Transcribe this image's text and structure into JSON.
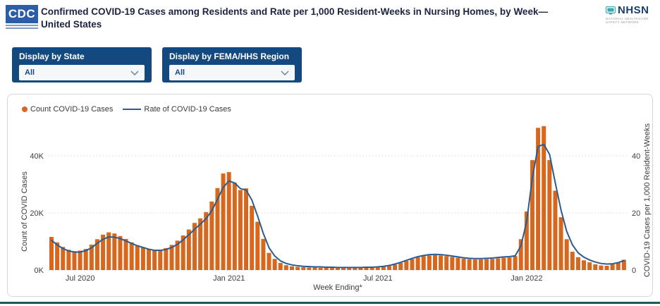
{
  "header": {
    "cdc_logo_text": "CDC",
    "title": "Confirmed COVID-19 Cases among Residents and Rate per 1,000 Resident-Weeks in Nursing Homes, by Week— United States",
    "nhsn_name": "NHSN",
    "nhsn_subtitle": "NATIONAL HEALTHCARE SAFETY NETWORK"
  },
  "filters": [
    {
      "label": "Display by State",
      "value": "All"
    },
    {
      "label": "Display by FEMA/HHS Region",
      "value": "All"
    }
  ],
  "legend": [
    {
      "label": "Count COVID-19 Cases",
      "swatch": "dot",
      "color": "#D8671E"
    },
    {
      "label": "Rate of COVID-19 Cases",
      "swatch": "line",
      "color": "#2A5C8F"
    }
  ],
  "colors": {
    "bar_orange": "#D8671E",
    "line_blue": "#2A5C8F",
    "filter_navy": "#14497F",
    "gridline": "#D8D8D8",
    "tick_text": "#3D3D3D",
    "footer_teal": "#1E5B52"
  },
  "chart_data": {
    "type": "bar+line combo, weekly",
    "xlabel": "Week Ending*",
    "x_tick_labels": [
      "Jul 2020",
      "Jan 2021",
      "Jul 2021",
      "Jan 2022"
    ],
    "x_tick_indices": [
      5,
      31,
      57,
      83
    ],
    "left_axis": {
      "label": "Count of COVID Cases",
      "ticks": [
        "0K",
        "20K",
        "40K"
      ],
      "tick_values": [
        0,
        20,
        40
      ],
      "range": [
        0,
        52
      ]
    },
    "right_axis": {
      "label": "COVID-19 Cases per 1,000 Resident-Weeks",
      "ticks": [
        "0",
        "20",
        "40"
      ],
      "tick_values": [
        0,
        20,
        40
      ],
      "range": [
        0,
        52
      ]
    },
    "grid": "horizontal dotted",
    "legend_position": "top-left",
    "series": [
      {
        "name": "Count COVID-19 Cases",
        "type": "bar",
        "color": "#D8671E",
        "unit": "thousands of cases",
        "values": [
          11.6,
          9.7,
          8.1,
          7.1,
          6.6,
          6.8,
          7.4,
          8.9,
          10.8,
          12.4,
          13.2,
          12.8,
          11.9,
          10.9,
          9.7,
          8.7,
          8.0,
          7.4,
          7.0,
          7.1,
          7.7,
          8.8,
          10.3,
          12.1,
          14.2,
          16.5,
          18.1,
          20.3,
          24.0,
          28.7,
          33.8,
          34.3,
          30.6,
          28.0,
          28.6,
          22.5,
          16.9,
          10.9,
          6.0,
          3.9,
          2.5,
          1.7,
          1.3,
          1.1,
          1.0,
          0.9,
          0.9,
          0.8,
          0.8,
          0.8,
          0.7,
          0.7,
          0.7,
          0.7,
          0.8,
          0.8,
          0.8,
          0.9,
          1.1,
          1.4,
          1.9,
          2.5,
          3.2,
          3.9,
          4.5,
          4.9,
          5.1,
          5.2,
          5.1,
          4.9,
          4.6,
          4.3,
          4.0,
          3.8,
          3.7,
          3.7,
          3.8,
          3.9,
          4.1,
          4.3,
          4.4,
          4.9,
          10.8,
          20.5,
          38.5,
          49.8,
          50.4,
          38.5,
          27.8,
          18.5,
          10.8,
          6.4,
          4.5,
          3.4,
          2.7,
          2.0,
          1.6,
          1.5,
          2.0,
          2.7,
          3.6
        ]
      },
      {
        "name": "Rate of COVID-19 Cases",
        "type": "line",
        "color": "#2A5C8F",
        "unit": "cases per 1,000 resident-weeks",
        "values": [
          10.4,
          8.8,
          7.5,
          6.7,
          6.3,
          6.3,
          6.8,
          7.8,
          9.4,
          10.8,
          11.6,
          11.5,
          11.0,
          10.2,
          9.3,
          8.5,
          7.9,
          7.3,
          6.9,
          6.9,
          7.2,
          7.9,
          9.0,
          10.6,
          12.4,
          14.3,
          16.1,
          18.0,
          20.8,
          24.8,
          29.0,
          31.2,
          30.5,
          28.5,
          28.0,
          24.5,
          18.9,
          12.8,
          7.8,
          4.9,
          3.2,
          2.3,
          1.8,
          1.5,
          1.3,
          1.2,
          1.1,
          1.1,
          1.0,
          1.0,
          0.9,
          0.9,
          0.9,
          0.9,
          0.9,
          1.0,
          1.0,
          1.1,
          1.3,
          1.6,
          2.1,
          2.7,
          3.4,
          4.1,
          4.7,
          5.1,
          5.4,
          5.5,
          5.4,
          5.2,
          4.9,
          4.6,
          4.3,
          4.1,
          4.0,
          4.0,
          4.1,
          4.2,
          4.4,
          4.6,
          4.7,
          5.0,
          8.5,
          17.0,
          32.5,
          43.3,
          44.0,
          40.5,
          30.5,
          21.0,
          13.5,
          8.8,
          6.0,
          4.5,
          3.5,
          2.8,
          2.3,
          2.1,
          2.2,
          2.6,
          3.3
        ]
      }
    ]
  }
}
